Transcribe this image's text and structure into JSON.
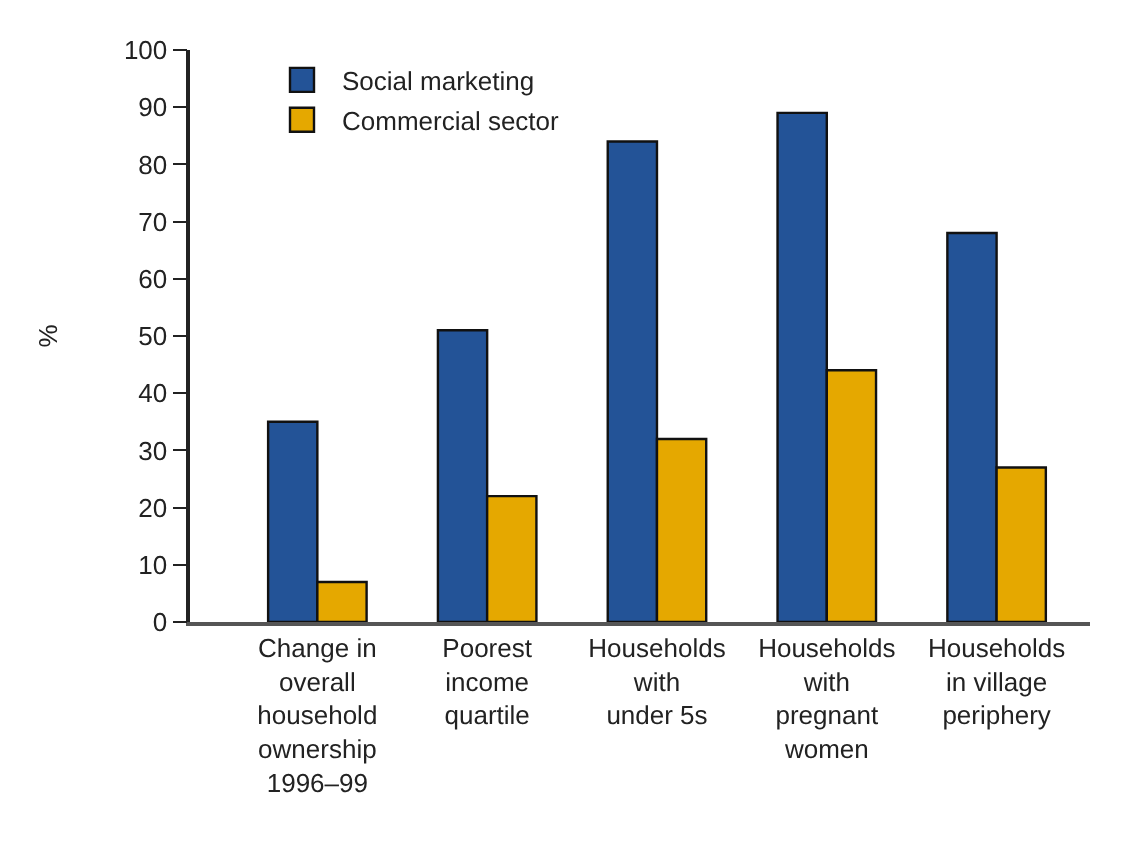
{
  "chart_data": {
    "type": "bar",
    "ylabel": "%",
    "categories": [
      "Change in\noverall\nhousehold\nownership\n1996–99",
      "Poorest\nincome\nquartile",
      "Households\nwith\nunder 5s",
      "Households\nwith\npregnant\nwomen",
      "Households\nin village\nperiphery"
    ],
    "series": [
      {
        "name": "Social marketing",
        "color": "#235397",
        "values": [
          35,
          51,
          84,
          89,
          68
        ]
      },
      {
        "name": "Commercial sector",
        "color": "#e5a800",
        "values": [
          7,
          22,
          32,
          44,
          27
        ]
      }
    ],
    "ylim": [
      0,
      100
    ],
    "yticks": [
      0,
      10,
      20,
      30,
      40,
      50,
      60,
      70,
      80,
      90,
      100
    ],
    "legend": "top left"
  }
}
